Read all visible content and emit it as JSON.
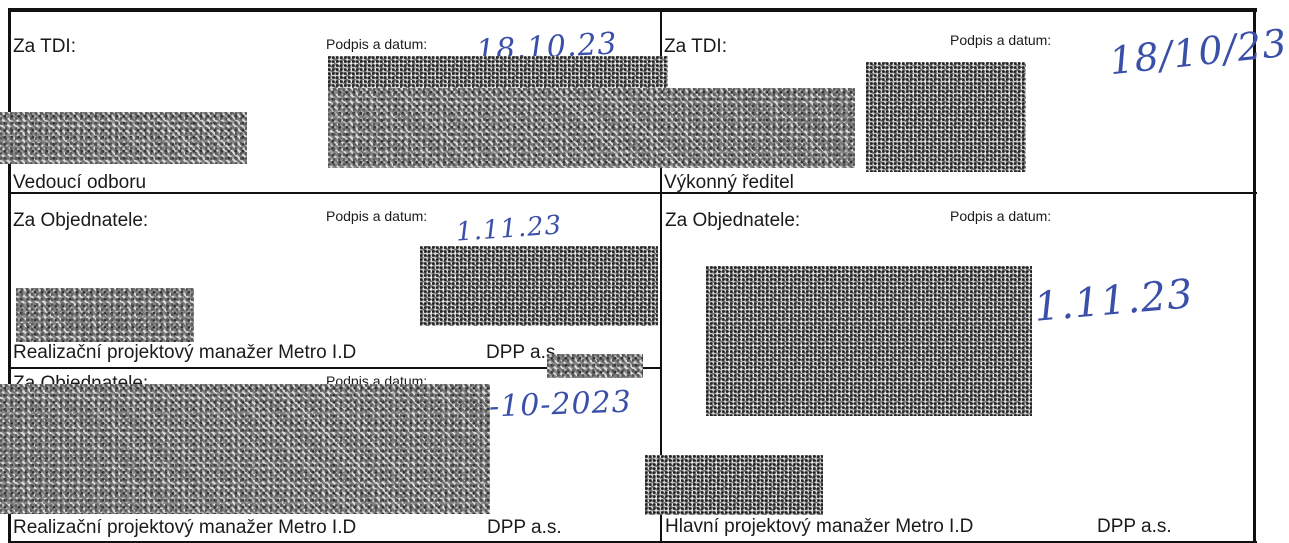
{
  "signature_form": {
    "cells": [
      {
        "party": "Za TDI:",
        "sign_label": "Podpis a datum:",
        "handwritten_date": "18.10.23",
        "role": "Vedoucí odboru",
        "organization": ""
      },
      {
        "party": "Za TDI:",
        "sign_label": "Podpis a datum:",
        "handwritten_date": "18/10/23",
        "role": "Výkonný ředitel",
        "organization": ""
      },
      {
        "party": "Za Objednatele:",
        "sign_label": "Podpis a datum:",
        "handwritten_date": "1.11.23",
        "role": "Realizační projektový manažer Metro I.D",
        "organization": "DPP a.s."
      },
      {
        "party": "Za Objednatele:",
        "sign_label": "Podpis a datum:",
        "handwritten_date": "1.11.23",
        "role": "Hlavní projektový manažer Metro I.D",
        "organization": "DPP a.s."
      },
      {
        "party": "Za Objednatele:",
        "sign_label": "Podpis a datum:",
        "handwritten_date": "-10-2023",
        "role": "Realizační projektový manažer Metro I.D",
        "organization": "DPP a.s."
      }
    ]
  }
}
